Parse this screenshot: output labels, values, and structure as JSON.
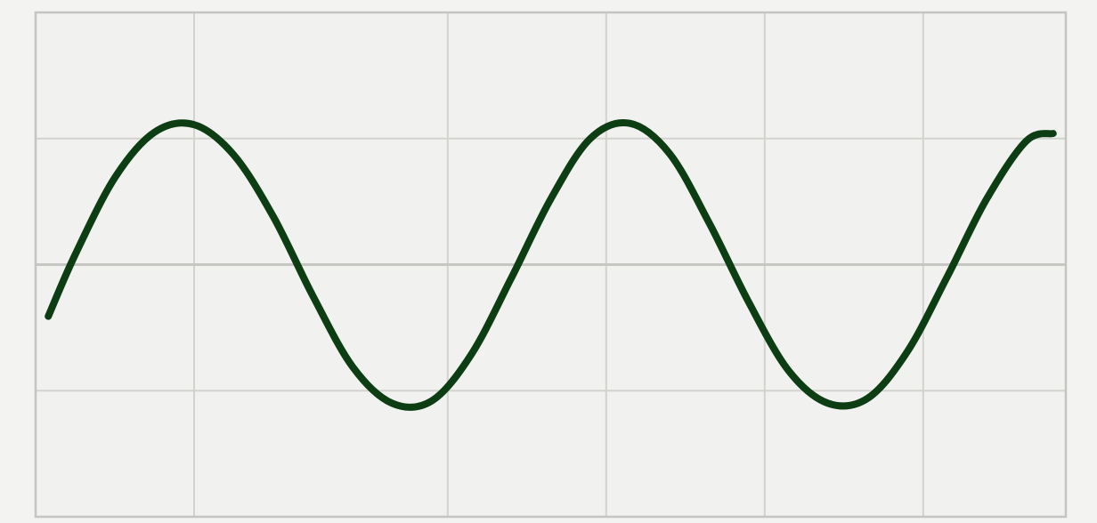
{
  "chart_data": {
    "type": "line",
    "title": "",
    "xlabel": "",
    "ylabel": "",
    "grid": true,
    "legend": "none",
    "xlim": [
      0,
      6.5
    ],
    "ylim": [
      -2,
      2
    ],
    "x_gridlines": [
      1,
      2.6,
      3.6,
      4.6,
      5.6
    ],
    "y_gridlines": [
      -1,
      0,
      1
    ],
    "series": [
      {
        "color": "#0d3d12",
        "x": [
          0.08,
          0.25,
          0.5,
          0.75,
          1.0,
          1.25,
          1.5,
          1.75,
          2.0,
          2.25,
          2.5,
          2.75,
          3.0,
          3.25,
          3.5,
          3.75,
          4.0,
          4.25,
          4.5,
          4.75,
          5.0,
          5.25,
          5.5,
          5.75,
          6.0,
          6.25,
          6.42
        ],
        "y": [
          -0.41,
          0.08,
          0.69,
          1.05,
          1.11,
          0.87,
          0.38,
          -0.25,
          -0.81,
          -1.1,
          -1.08,
          -0.71,
          -0.11,
          0.52,
          1.0,
          1.12,
          0.88,
          0.33,
          -0.3,
          -0.84,
          -1.1,
          -1.06,
          -0.69,
          -0.1,
          0.52,
          0.98,
          1.04
        ]
      }
    ],
    "colors": {
      "background": "#f3f3f1",
      "grid": "#d2d2cf",
      "frame": "#c4c4c1",
      "line": "#0d3d12"
    }
  }
}
